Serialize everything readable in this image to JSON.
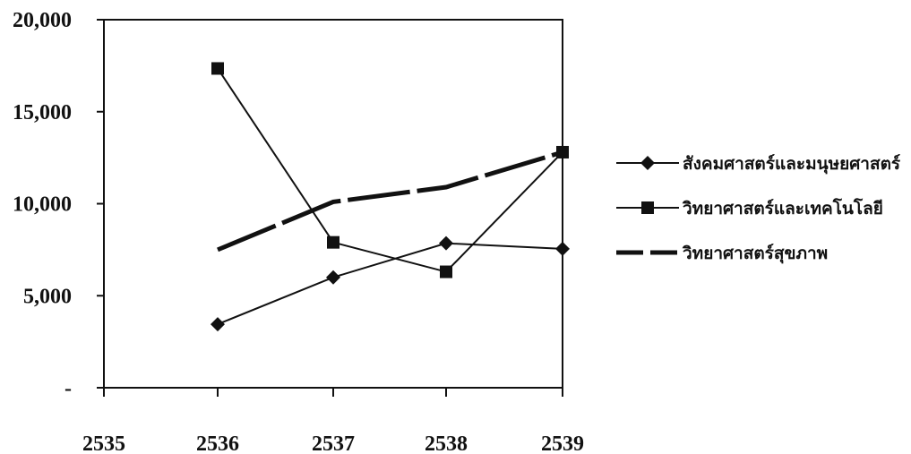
{
  "chart_data": {
    "type": "line",
    "title": "",
    "xlabel": "",
    "ylabel": "",
    "x": [
      "2535",
      "2536",
      "2537",
      "2538",
      "2539"
    ],
    "ylim": [
      0,
      20000
    ],
    "yticks": [
      0,
      5000,
      10000,
      15000,
      20000
    ],
    "ytick_labels": [
      "-",
      "5,000",
      "10,000",
      "15,000",
      "20,000"
    ],
    "grid": false,
    "legend_position": "right",
    "series": [
      {
        "name": "สังคมศาสตร์และมนุษยศาสตร์",
        "marker": "diamond",
        "style": "solid",
        "color": "#111111",
        "values": [
          null,
          3450,
          6000,
          7850,
          7550
        ]
      },
      {
        "name": "วิทยาศาสตร์และเทคโนโลยี",
        "marker": "square",
        "style": "solid",
        "color": "#111111",
        "values": [
          null,
          17350,
          7900,
          6300,
          12800
        ]
      },
      {
        "name": "วิทยาศาสตร์สุขภาพ",
        "marker": "none",
        "style": "thick-dashed",
        "color": "#111111",
        "values": [
          null,
          7500,
          10100,
          10900,
          12800
        ]
      }
    ]
  }
}
